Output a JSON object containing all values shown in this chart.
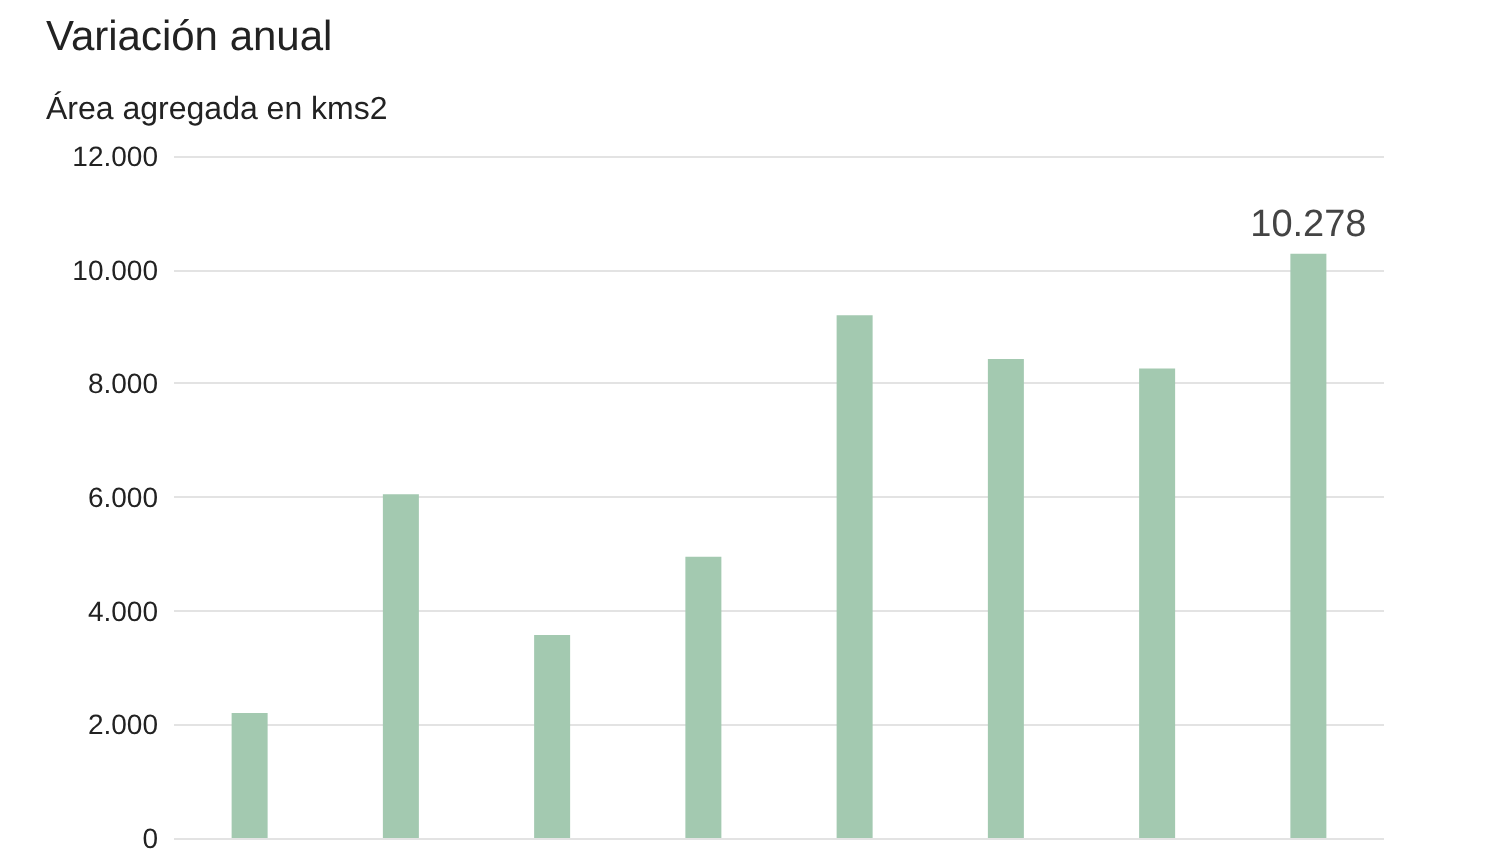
{
  "chart_data": {
    "type": "bar",
    "title": "Variación anual",
    "subtitle": "Área agregada en kms2",
    "categories": [
      null,
      null,
      null,
      null,
      null,
      null,
      null,
      null
    ],
    "values": [
      2200,
      6050,
      3570,
      4950,
      9200,
      8430,
      8260,
      10278
    ],
    "value_labels": [
      null,
      null,
      null,
      null,
      null,
      null,
      null,
      "10.278"
    ],
    "color": "#a3c9b0",
    "ylim": [
      0,
      12000
    ],
    "yticks": [
      {
        "value": 0,
        "label": "0"
      },
      {
        "value": 2000,
        "label": "2.000"
      },
      {
        "value": 4000,
        "label": "4.000"
      },
      {
        "value": 6000,
        "label": "6.000"
      },
      {
        "value": 8000,
        "label": "8.000"
      },
      {
        "value": 10000,
        "label": "10.000"
      },
      {
        "value": 12000,
        "label": "12.000"
      }
    ],
    "grid": "y",
    "tick_labels": "y"
  }
}
